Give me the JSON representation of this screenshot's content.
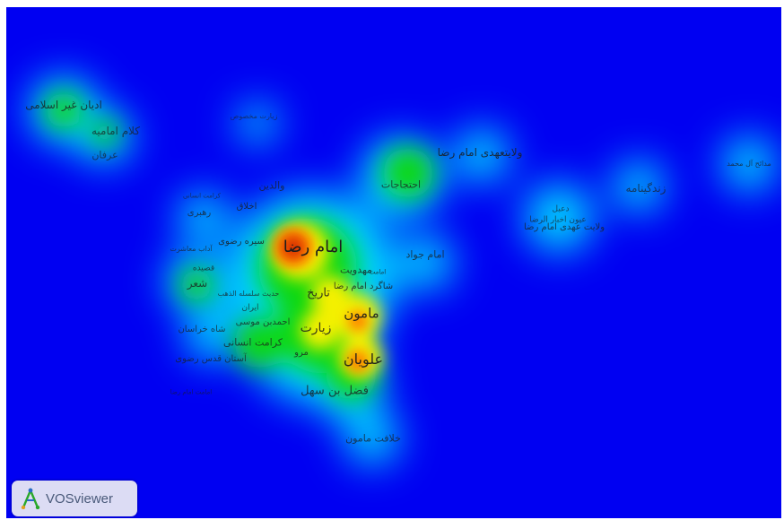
{
  "app": {
    "name": "VOSviewer",
    "view": "density visualization",
    "background_color": "#0000f2",
    "density_colors": [
      "#0000f2",
      "#00e0ff",
      "#00e000",
      "#ffff00",
      "#ff6600",
      "#d02000"
    ]
  },
  "labels": [
    {
      "text": "امام رضا",
      "density": 1.0,
      "fs": 18
    },
    {
      "text": "علویان",
      "density": 0.85,
      "fs": 16
    },
    {
      "text": "مامون",
      "density": 0.8,
      "fs": 15
    },
    {
      "text": "زیارت",
      "density": 0.7,
      "fs": 14
    },
    {
      "text": "تاریخ",
      "density": 0.7,
      "fs": 13
    },
    {
      "text": "مهدویت",
      "density": 0.6,
      "fs": 11
    },
    {
      "text": "سیره رضوی",
      "density": 0.6,
      "fs": 10
    },
    {
      "text": "شاگرد امام رضا",
      "density": 0.6,
      "fs": 10
    },
    {
      "text": "امامت",
      "density": 0.5,
      "fs": 7
    },
    {
      "text": "ولایتعهدی امام رضا",
      "density": 0.65,
      "fs": 12
    },
    {
      "text": "فضل بن سهل",
      "density": 0.5,
      "fs": 13
    },
    {
      "text": "مرو",
      "density": 0.5,
      "fs": 10
    },
    {
      "text": "کرامت انسانی",
      "density": 0.45,
      "fs": 11
    },
    {
      "text": "احمدبن موسی",
      "density": 0.45,
      "fs": 10
    },
    {
      "text": "شاه خراسان",
      "density": 0.4,
      "fs": 10
    },
    {
      "text": "آستان قدس رضوی",
      "density": 0.35,
      "fs": 10
    },
    {
      "text": "ایران",
      "density": 0.4,
      "fs": 9
    },
    {
      "text": "حدیث سلسله الذهب",
      "density": 0.4,
      "fs": 8
    },
    {
      "text": "شعر",
      "density": 0.4,
      "fs": 12
    },
    {
      "text": "قصیده",
      "density": 0.35,
      "fs": 9
    },
    {
      "text": "آداب معاشرت",
      "density": 0.3,
      "fs": 8
    },
    {
      "text": "اخلاق",
      "density": 0.5,
      "fs": 10
    },
    {
      "text": "رهبری",
      "density": 0.35,
      "fs": 10
    },
    {
      "text": "کرامت انسانی",
      "density": 0.2,
      "fs": 7
    },
    {
      "text": "والدین",
      "density": 0.35,
      "fs": 11
    },
    {
      "text": "امام جواد",
      "density": 0.45,
      "fs": 11
    },
    {
      "text": "احتجاجات",
      "density": 0.45,
      "fs": 11
    },
    {
      "text": "ولایت عهدی امام رضا",
      "density": 0.45,
      "fs": 10
    },
    {
      "text": "ادیان غیر اسلامی",
      "density": 0.5,
      "fs": 12
    },
    {
      "text": "کلام امامیه",
      "density": 0.35,
      "fs": 12
    },
    {
      "text": "عرفان",
      "density": 0.25,
      "fs": 11
    },
    {
      "text": "زندگینامه",
      "density": 0.3,
      "fs": 12
    },
    {
      "text": "زیارت مخصوص",
      "density": 0.1,
      "fs": 8
    },
    {
      "text": "عیون اخبار الرضا",
      "density": 0.3,
      "fs": 9
    },
    {
      "text": "دعبل",
      "density": 0.3,
      "fs": 9
    },
    {
      "text": "مدائح آل محمد",
      "density": 0.35,
      "fs": 8
    },
    {
      "text": "خلافت مامون",
      "density": 0.4,
      "fs": 11
    },
    {
      "text": "امامت امام رضا",
      "density": 0.15,
      "fs": 7
    }
  ]
}
